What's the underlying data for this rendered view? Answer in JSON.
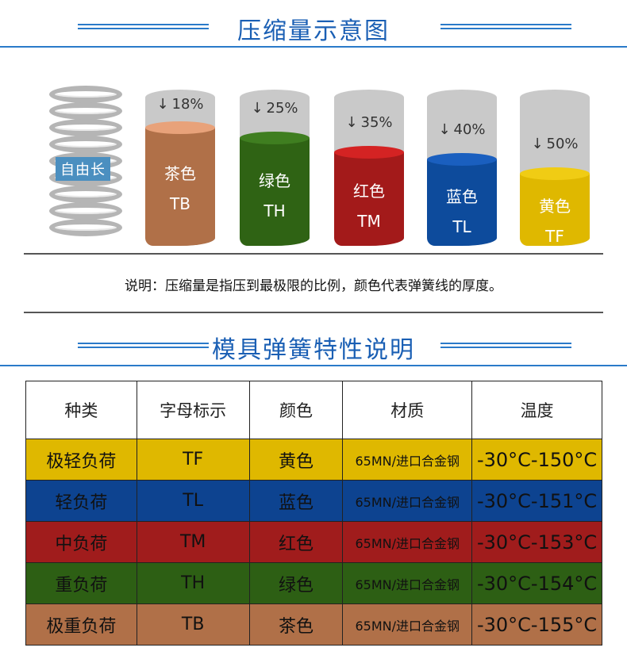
{
  "section1": {
    "title": "压缩量示意图"
  },
  "spring": {
    "label": "自由长",
    "icon": "coil-spring-icon"
  },
  "cylinders": [
    {
      "percent": "18%",
      "name": "茶色",
      "code": "TB",
      "color": "#b07048",
      "top_color": "#e8a27a",
      "fill_fraction": 0.82
    },
    {
      "percent": "25%",
      "name": "绿色",
      "code": "TH",
      "color": "#2f6314",
      "top_color": "#3f7e20",
      "fill_fraction": 0.75
    },
    {
      "percent": "35%",
      "name": "红色",
      "code": "TM",
      "color": "#a31a1a",
      "top_color": "#d42323",
      "fill_fraction": 0.65
    },
    {
      "percent": "40%",
      "name": "蓝色",
      "code": "TL",
      "color": "#0d4b9c",
      "top_color": "#1a5fbf",
      "fill_fraction": 0.6
    },
    {
      "percent": "50%",
      "name": "黄色",
      "code": "TF",
      "color": "#dfb800",
      "top_color": "#f0cc14",
      "fill_fraction": 0.5
    }
  ],
  "arrow_glyph": "↓",
  "note": "说明：压缩量是指压到最极限的比例，颜色代表弹簧线的厚度。",
  "section2": {
    "title": "模具弹簧特性说明"
  },
  "table": {
    "headers": [
      "种类",
      "字母标示",
      "颜色",
      "材质",
      "温度"
    ],
    "rows": [
      {
        "cells": [
          "极轻负荷",
          "TF",
          "黄色",
          "65MN/进口合金钢",
          "-30°C-150°C"
        ],
        "bg": "#dfb800"
      },
      {
        "cells": [
          "轻负荷",
          "TL",
          "蓝色",
          "65MN/进口合金钢",
          "-30°C-151°C"
        ],
        "bg": "#0d4390"
      },
      {
        "cells": [
          "中负荷",
          "TM",
          "红色",
          "65MN/进口合金钢",
          "-30°C-153°C"
        ],
        "bg": "#a01c1c"
      },
      {
        "cells": [
          "重负荷",
          "TH",
          "绿色",
          "65MN/进口合金钢",
          "-30°C-154°C"
        ],
        "bg": "#2d5f14"
      },
      {
        "cells": [
          "极重负荷",
          "TB",
          "茶色",
          "65MN/进口合金钢",
          "-30°C-155°C"
        ],
        "bg": "#b07048"
      }
    ]
  }
}
